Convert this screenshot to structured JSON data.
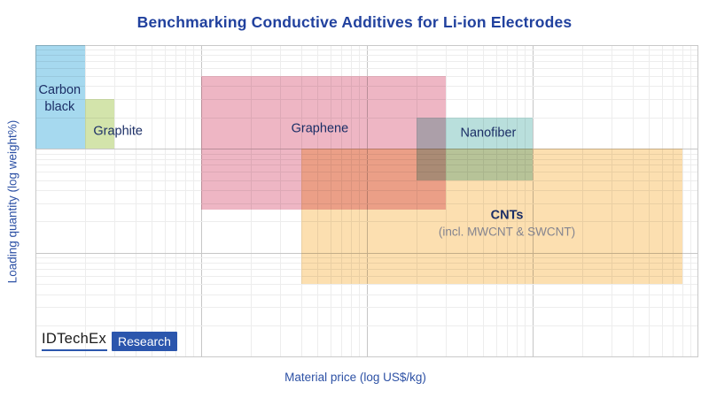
{
  "page": {
    "background": "#ffffff"
  },
  "title": {
    "text": "Benchmarking Conductive Additives for Li-ion Electrodes",
    "color": "#21419e"
  },
  "watermark": {
    "brand": "IDTechEx",
    "product": "Research",
    "badge_color": "#2b56ad",
    "brand_text_color": "#1a1a1a"
  },
  "chart_data": {
    "type": "area",
    "variant": "overlapping translucent range boxes on unlabeled log-log axes",
    "title": "Benchmarking Conductive Additives for Li-ion Electrodes",
    "xlabel": "Material price (log US$/kg)",
    "ylabel": "Loading quantity (log weight%)",
    "x_scale": "log",
    "y_scale": "log",
    "xlim": [
      1,
      10000
    ],
    "ylim": [
      0.1,
      100
    ],
    "tick_labels": "none",
    "grid": {
      "visible": true,
      "minor_color": "#ededed",
      "major_color": "#c6c6c6",
      "border_color": "#c9c9c9"
    },
    "label_color": "#1b2e66",
    "series": [
      {
        "name": "Carbon black",
        "label_lines": [
          "Carbon",
          "black"
        ],
        "fill": "#a6d9ef",
        "price_usd_per_kg": [
          1,
          2
        ],
        "loading_wt_pct": [
          10,
          100
        ],
        "label_at": [
          1.4,
          30
        ],
        "label_bold": false
      },
      {
        "name": "Graphite",
        "label_lines": [
          "Graphite"
        ],
        "fill": "#d3e4ab",
        "price_usd_per_kg": [
          2,
          3
        ],
        "loading_wt_pct": [
          10,
          30
        ],
        "label_at": [
          3.15,
          14.5
        ],
        "label_bold": false
      },
      {
        "name": "Graphene",
        "label_lines": [
          "Graphene"
        ],
        "fill": "#eeb6c4",
        "price_usd_per_kg": [
          10,
          300
        ],
        "loading_wt_pct": [
          2.6,
          50
        ],
        "label_at": [
          52,
          15.5
        ],
        "label_bold": false
      },
      {
        "name": "Nanofiber",
        "label_lines": [
          "Nanofiber"
        ],
        "fill": "#b9dfdc",
        "price_usd_per_kg": [
          200,
          1000
        ],
        "loading_wt_pct": [
          5,
          20
        ],
        "label_at": [
          540,
          14
        ],
        "label_bold": false
      },
      {
        "name": "CNTs",
        "label_lines": [
          "CNTs"
        ],
        "sub_label": "(incl. MWCNT & SWCNT)",
        "sub_label_color": "#84848f",
        "fill": "#fcdfb0",
        "price_usd_per_kg": [
          40,
          8000
        ],
        "loading_wt_pct": [
          0.5,
          10
        ],
        "label_at": [
          700,
          1.9
        ],
        "label_bold": true
      }
    ]
  }
}
